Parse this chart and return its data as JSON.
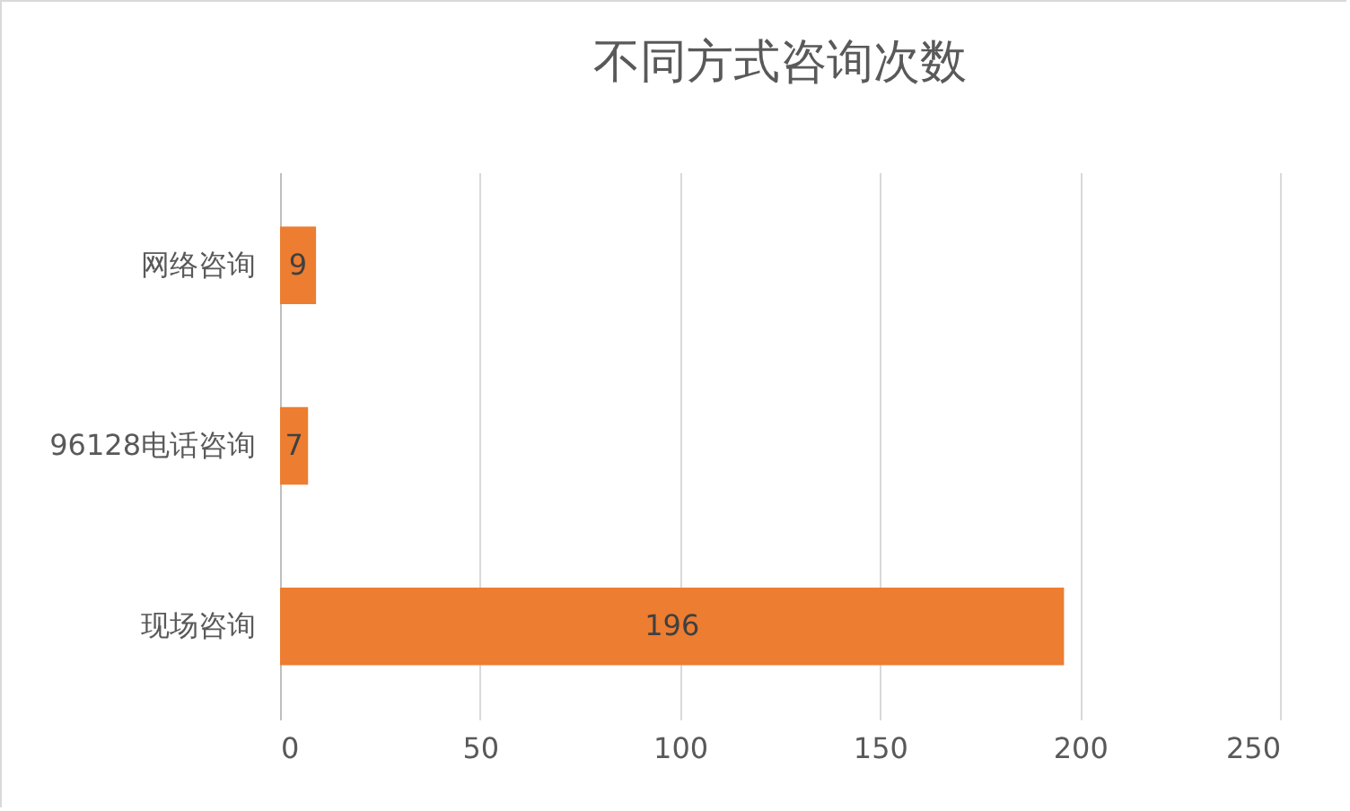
{
  "chart_data": {
    "type": "bar",
    "orientation": "horizontal",
    "title": "不同方式咨询次数",
    "categories": [
      "网络咨询",
      "96128电话咨询",
      "现场咨询"
    ],
    "values": [
      9,
      7,
      196
    ],
    "color": "#ed7d31",
    "xlim": [
      0,
      250
    ],
    "xticks": [
      0,
      50,
      100,
      150,
      200,
      250
    ],
    "grid": "x",
    "data_labels": true
  }
}
